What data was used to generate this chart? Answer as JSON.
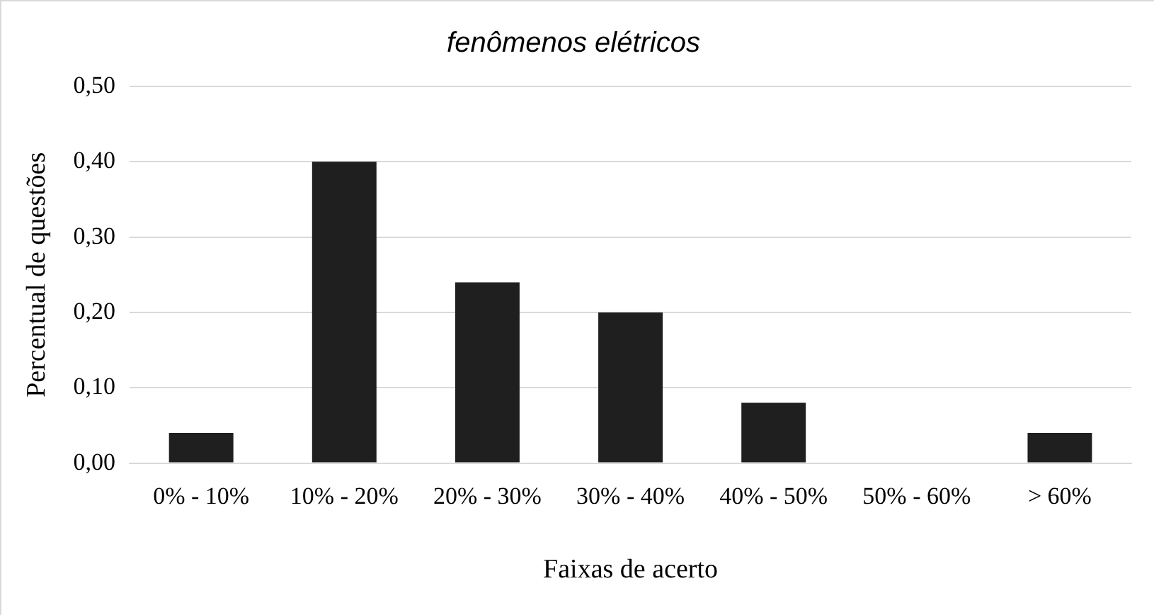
{
  "chart_data": {
    "type": "bar",
    "title": "fenômenos elétricos",
    "xlabel": "Faixas de acerto",
    "ylabel": "Percentual de questões",
    "categories": [
      "0% - 10%",
      "10% - 20%",
      "20% - 30%",
      "30% - 40%",
      "40% - 50%",
      "50% - 60%",
      "> 60%"
    ],
    "values": [
      0.04,
      0.4,
      0.24,
      0.2,
      0.08,
      0,
      0.04
    ],
    "color": "#1f1f1f",
    "ylim": [
      0,
      0.5
    ],
    "yticks": [
      {
        "value": 0,
        "label": "0,00"
      },
      {
        "value": 0.1,
        "label": "0,10"
      },
      {
        "value": 0.2,
        "label": "0,20"
      },
      {
        "value": 0.3,
        "label": "0,30"
      },
      {
        "value": 0.4,
        "label": "0,40"
      },
      {
        "value": 0.5,
        "label": "0,50"
      }
    ],
    "grid": "y",
    "legend": false
  }
}
